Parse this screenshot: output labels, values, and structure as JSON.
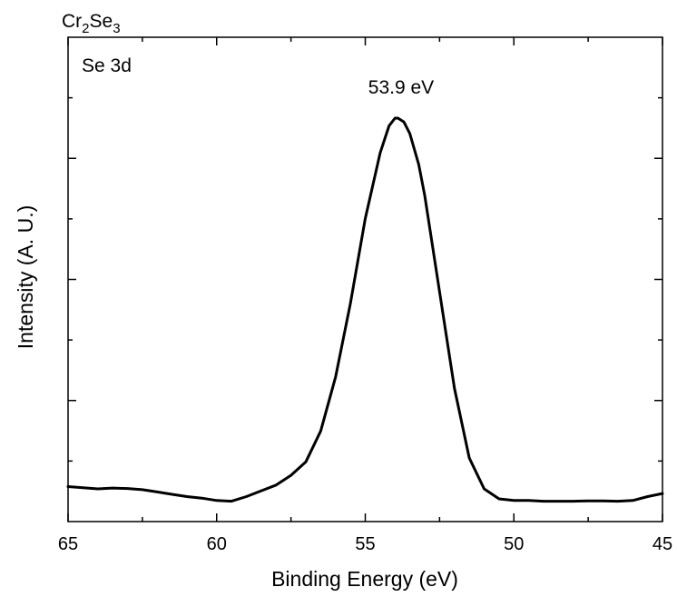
{
  "chart_data": {
    "type": "line",
    "sample_label": {
      "base": "Cr",
      "sub1": "2",
      "mid": "Se",
      "sub2": "3"
    },
    "panel_label": "Se 3d",
    "xlabel": "Binding Energy (eV)",
    "ylabel": "Intensity (A. U.)",
    "xlim": [
      65,
      45
    ],
    "x_reversed": true,
    "ylim": [
      0,
      1.0
    ],
    "y_tick_labels_shown": false,
    "x_ticks": [
      {
        "value": 65,
        "label": "65"
      },
      {
        "value": 60,
        "label": "60"
      },
      {
        "value": 55,
        "label": "55"
      },
      {
        "value": 50,
        "label": "50"
      },
      {
        "value": 45,
        "label": "45"
      }
    ],
    "peak_annotation": {
      "text": "53.9 eV",
      "x": 53.9
    },
    "series": [
      {
        "color": "#000000",
        "x": [
          65,
          64.5,
          64,
          63.5,
          63,
          62.5,
          62,
          61.5,
          61,
          60.5,
          60,
          59.5,
          59,
          58.5,
          58,
          57.5,
          57,
          56.5,
          56,
          55.5,
          55,
          54.5,
          54.2,
          54,
          53.9,
          53.7,
          53.5,
          53.2,
          53,
          52.5,
          52,
          51.5,
          51,
          50.5,
          50,
          49.5,
          49,
          48.5,
          48,
          47.5,
          47,
          46.5,
          46,
          45.5,
          45
        ],
        "y": [
          0.046,
          0.043,
          0.04,
          0.042,
          0.041,
          0.038,
          0.032,
          0.026,
          0.02,
          0.016,
          0.01,
          0.008,
          0.02,
          0.035,
          0.05,
          0.075,
          0.11,
          0.19,
          0.33,
          0.52,
          0.74,
          0.91,
          0.98,
          1.0,
          1.0,
          0.99,
          0.96,
          0.88,
          0.8,
          0.55,
          0.3,
          0.12,
          0.04,
          0.014,
          0.01,
          0.01,
          0.008,
          0.008,
          0.008,
          0.009,
          0.009,
          0.008,
          0.01,
          0.02,
          0.028
        ]
      }
    ]
  }
}
